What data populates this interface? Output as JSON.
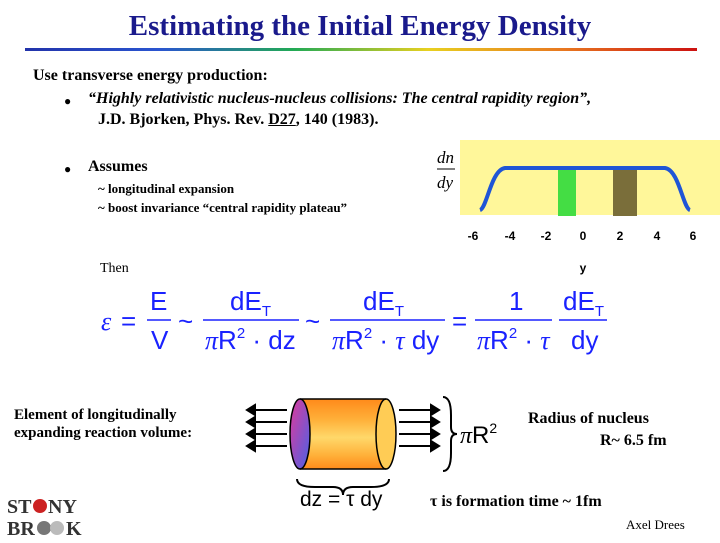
{
  "slide": {
    "title": "Estimating the Initial Energy Density",
    "intro": "Use transverse energy production:",
    "bullet1_line1": "“Highly relativistic nucleus-nucleus collisions: The central rapidity region”,",
    "bullet1_line2_pre": "J.D. Bjorken, Phys. Rev. ",
    "bullet1_volume": "D27",
    "bullet1_line2_post": ", 140 (1983).",
    "bullet2": "Assumes",
    "sub1": "~ longitudinal expansion",
    "sub2": "~ boost invariance “central rapidity plateau”",
    "then": "Then",
    "element_line1": "Element of longitudinally",
    "element_line2": "expanding reaction volume:",
    "radius_line1": "Radius of nucleus",
    "radius_line2": "R~ 6.5 fm",
    "tau_text": "τ is formation time ~ 1fm",
    "author": "Axel Drees",
    "logo_text": "STONY BROOK"
  },
  "chart": {
    "ylabel_top": "dn",
    "ylabel_bottom": "dy",
    "xlabel": "y",
    "ticks": [
      "-6",
      "-4",
      "-2",
      "0",
      "2",
      "4",
      "6"
    ],
    "colors": {
      "panel": "#fff79a",
      "curve": "#1f55d6",
      "green_band": "#44dd44",
      "olive_band": "#7a6e3a"
    }
  },
  "formula": {
    "lhs": "ε",
    "E": "E",
    "V": "V",
    "dET": "dE",
    "T": "T",
    "pi": "π",
    "R": "R",
    "sq": "2",
    "dz": "dz",
    "tau": "τ",
    "dy": "dy",
    "one": "1",
    "sim": "~",
    "eq": "=",
    "dot": "·"
  },
  "diagram": {
    "pr2_pi": "π",
    "pr2_R": "R",
    "pr2_sq": "2",
    "dz_formula": "dz = τ dy"
  }
}
